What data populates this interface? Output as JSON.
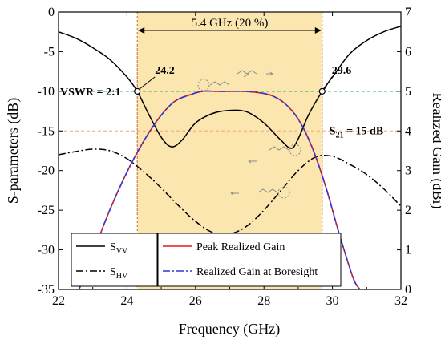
{
  "chart_data": {
    "type": "line",
    "xlabel": "Frequency (GHz)",
    "ylabel_left": "S-parameters (dB)",
    "ylabel_right": "Realized Gain (dBi)",
    "xlim": [
      22,
      32
    ],
    "ylim_left": [
      -35,
      0
    ],
    "ylim_right": [
      0,
      7
    ],
    "x_ticks": [
      22,
      24,
      26,
      28,
      30,
      32
    ],
    "y_ticks_left": [
      0,
      -5,
      -10,
      -15,
      -20,
      -25,
      -30,
      -35
    ],
    "y_ticks_right": [
      0,
      1,
      2,
      3,
      4,
      5,
      6,
      7
    ],
    "band": {
      "x": [
        24.3,
        29.7
      ],
      "color": "#fbe6b0",
      "label": "5.4 GHz (20 %)"
    },
    "reference_lines": {
      "vswr_db": -10,
      "vswr_color": "#2bb35a",
      "s21_db": -15,
      "s21_color": "#f0a878"
    },
    "annotations": {
      "vswr": "VSWR = 2:1",
      "s21_main": "S",
      "s21_sub": "21",
      "s21_value": " = 15 dB",
      "left_marker": "24.2",
      "right_marker": "29.6"
    },
    "series": [
      {
        "name": "S",
        "name_sub": "VV",
        "axis": "left",
        "color": "#000000",
        "style": "solid",
        "x": [
          22,
          22.5,
          23,
          23.5,
          24,
          24.3,
          24.6,
          25,
          25.3,
          25.6,
          26,
          26.5,
          27,
          27.5,
          28,
          28.5,
          28.8,
          29,
          29.3,
          29.7,
          30,
          30.5,
          31,
          31.5,
          32
        ],
        "y": [
          -2.5,
          -3.3,
          -4.5,
          -6,
          -8.2,
          -10,
          -12.6,
          -15.8,
          -17,
          -16.2,
          -14,
          -12.8,
          -12.4,
          -12.6,
          -14,
          -16.2,
          -17.2,
          -16,
          -13,
          -10,
          -8.2,
          -5.3,
          -3.6,
          -2.5,
          -1.8
        ]
      },
      {
        "name": "S",
        "name_sub": "HV",
        "axis": "left",
        "color": "#000000",
        "style": "dashdot",
        "x": [
          22,
          22.5,
          23,
          23.5,
          24,
          24.5,
          25,
          25.5,
          26,
          26.5,
          27,
          27.5,
          28,
          28.5,
          29,
          29.5,
          30,
          30.5,
          31,
          31.5,
          32
        ],
        "y": [
          -18,
          -17.6,
          -17.3,
          -17.5,
          -18.5,
          -20.2,
          -22.2,
          -24.4,
          -26.4,
          -27.8,
          -28,
          -27,
          -25,
          -22.5,
          -20,
          -18.3,
          -18.2,
          -19.2,
          -20.5,
          -22.3,
          -24.5
        ]
      },
      {
        "name": "Peak Realized Gain",
        "axis": "right",
        "color": "#e01818",
        "style": "solid",
        "x": [
          22.6,
          23,
          23.4,
          23.8,
          24.2,
          24.6,
          25,
          25.4,
          25.8,
          26.2,
          26.6,
          27,
          27.4,
          27.8,
          28.2,
          28.6,
          29,
          29.4,
          29.8,
          30.2,
          30.6,
          30.8
        ],
        "y": [
          0,
          0.9,
          1.8,
          2.6,
          3.3,
          3.9,
          4.4,
          4.75,
          4.9,
          5.0,
          5.0,
          5.0,
          5.0,
          4.97,
          4.9,
          4.7,
          4.3,
          3.6,
          2.6,
          1.4,
          0.3,
          0
        ]
      },
      {
        "name": "Realized Gain at Boresight",
        "axis": "right",
        "color": "#2a3ad8",
        "style": "dashdot",
        "x": [
          22.6,
          23,
          23.4,
          23.8,
          24.2,
          24.6,
          25,
          25.4,
          25.8,
          26.2,
          26.6,
          27,
          27.4,
          27.8,
          28.2,
          28.6,
          29,
          29.4,
          29.8,
          30.2,
          30.6,
          30.8
        ],
        "y": [
          0,
          0.9,
          1.8,
          2.6,
          3.3,
          3.9,
          4.4,
          4.75,
          4.9,
          5.0,
          5.0,
          5.0,
          5.0,
          4.97,
          4.9,
          4.7,
          4.3,
          3.6,
          2.6,
          1.4,
          0.3,
          0
        ]
      }
    ],
    "legend_left": [
      0,
      1
    ],
    "legend_right": [
      2,
      3
    ]
  }
}
